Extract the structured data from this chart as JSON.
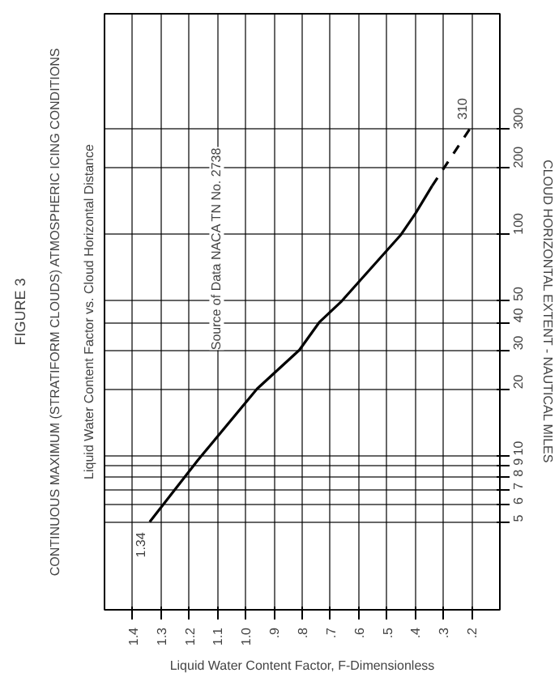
{
  "chart_data": {
    "type": "line",
    "title": "FIGURE 3",
    "subtitle": "CONTINUOUS MAXIMUM (STRATIFORM CLOUDS) ATMOSPHERIC ICING CONDITIONS",
    "xlabel": "Liquid Water Content Factor, F-Dimensionless",
    "ylabel": "CLOUD HORIZONTAL EXTENT - NAUTICAL MILES",
    "series": [
      {
        "color": "#000000",
        "line_style": "solid",
        "x": [
          1.34,
          1.17,
          0.96,
          0.81,
          0.74,
          0.66,
          0.45,
          0.4,
          0.34
        ],
        "values": [
          5,
          9.5,
          20,
          30,
          40,
          50,
          100,
          124,
          166
        ]
      },
      {
        "color": "#000000",
        "line_style": "dashed",
        "x": [
          0.34,
          0.2
        ],
        "values": [
          166,
          310
        ]
      }
    ],
    "xlim": [
      1.5,
      0.1
    ],
    "ylim": [
      2,
      1000
    ],
    "log": "y",
    "xticks": [
      1.4,
      1.3,
      1.2,
      1.1,
      {
        "value": 1.0,
        "label": "1.0"
      },
      {
        "value": 0.9,
        "label": ".9"
      },
      {
        "value": 0.8,
        "label": ".8"
      },
      {
        "value": 0.7,
        "label": ".7"
      },
      {
        "value": 0.6,
        "label": ".6"
      },
      {
        "value": 0.5,
        "label": ".5"
      },
      {
        "value": 0.4,
        "label": ".4"
      },
      {
        "value": 0.3,
        "label": ".3"
      },
      {
        "value": 0.2,
        "label": ".2"
      }
    ],
    "yticks": [
      5,
      6,
      7,
      8,
      9,
      10,
      20,
      30,
      40,
      50,
      100,
      200,
      300
    ],
    "grid": true,
    "annotations": [
      "Liquid Water Content Factor vs. Cloud Horizontal Distance",
      "Source of Data NACA TN No. 2738",
      {
        "text": "1.34",
        "x": 1.34,
        "y": 5
      },
      {
        "text": "310",
        "x": 0.2,
        "y": 310
      }
    ]
  }
}
